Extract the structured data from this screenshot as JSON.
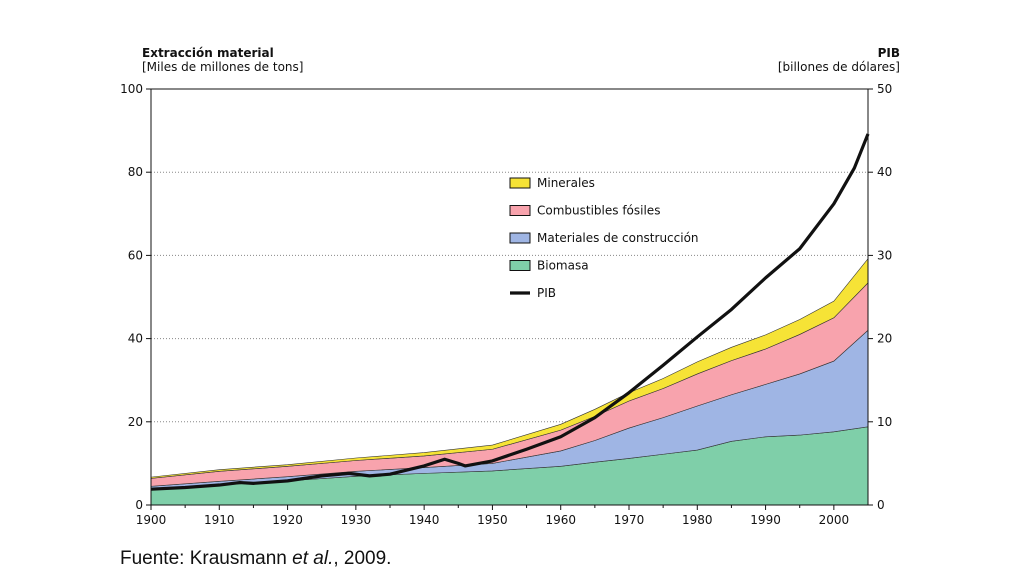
{
  "chart_data": {
    "type": "area",
    "left_axis": {
      "title": "Extracción material",
      "unit": "[Miles de millones de tons]",
      "ylim": [
        0,
        100
      ],
      "ticks": [
        "0",
        "20",
        "40",
        "60",
        "80",
        "100"
      ]
    },
    "right_axis": {
      "title": "PIB",
      "unit": "[billones de dólares]",
      "ylim": [
        0,
        50
      ],
      "ticks": [
        "0",
        "10",
        "20",
        "30",
        "40",
        "50"
      ]
    },
    "x_ticks": [
      "1900",
      "1910",
      "1920",
      "1930",
      "1940",
      "1950",
      "1960",
      "1970",
      "1980",
      "1990",
      "2000"
    ],
    "xlim": [
      1900,
      2005
    ],
    "grid": "horizontal-dotted",
    "legend_position": "center",
    "stacked_series": [
      {
        "name": "Biomasa",
        "color": "#7fcfa9",
        "points": [
          [
            1900,
            3.8
          ],
          [
            1910,
            4.8
          ],
          [
            1920,
            5.8
          ],
          [
            1930,
            6.9
          ],
          [
            1940,
            7.6
          ],
          [
            1950,
            8.2
          ],
          [
            1960,
            9.3
          ],
          [
            1965,
            10.3
          ],
          [
            1970,
            11.2
          ],
          [
            1975,
            12.2
          ],
          [
            1980,
            13.2
          ],
          [
            1985,
            15.3
          ],
          [
            1990,
            16.4
          ],
          [
            1995,
            16.8
          ],
          [
            2000,
            17.6
          ],
          [
            2005,
            18.8
          ]
        ]
      },
      {
        "name": "Materiales de construcción",
        "color": "#9fb5e4",
        "points": [
          [
            1900,
            0.7
          ],
          [
            1910,
            0.9
          ],
          [
            1920,
            1.0
          ],
          [
            1930,
            1.2
          ],
          [
            1940,
            1.4
          ],
          [
            1950,
            1.8
          ],
          [
            1960,
            3.7
          ],
          [
            1965,
            5.2
          ],
          [
            1970,
            7.3
          ],
          [
            1975,
            8.8
          ],
          [
            1980,
            10.6
          ],
          [
            1985,
            11.2
          ],
          [
            1990,
            12.6
          ],
          [
            1995,
            14.7
          ],
          [
            2000,
            17.0
          ],
          [
            2005,
            23.2
          ]
        ]
      },
      {
        "name": "Combustibles fósiles",
        "color": "#f8a3ad",
        "points": [
          [
            1900,
            1.9
          ],
          [
            1910,
            2.4
          ],
          [
            1920,
            2.5
          ],
          [
            1930,
            2.6
          ],
          [
            1940,
            2.8
          ],
          [
            1950,
            3.4
          ],
          [
            1960,
            5.0
          ],
          [
            1965,
            5.8
          ],
          [
            1970,
            6.5
          ],
          [
            1975,
            7.0
          ],
          [
            1980,
            7.7
          ],
          [
            1985,
            8.2
          ],
          [
            1990,
            8.5
          ],
          [
            1995,
            9.5
          ],
          [
            2000,
            10.4
          ],
          [
            2005,
            11.4
          ]
        ]
      },
      {
        "name": "Minerales",
        "color": "#f6e336",
        "points": [
          [
            1900,
            0.3
          ],
          [
            1910,
            0.4
          ],
          [
            1920,
            0.4
          ],
          [
            1930,
            0.6
          ],
          [
            1940,
            0.8
          ],
          [
            1950,
            1.0
          ],
          [
            1960,
            1.4
          ],
          [
            1965,
            1.7
          ],
          [
            1970,
            2.0
          ],
          [
            1975,
            2.4
          ],
          [
            1980,
            2.9
          ],
          [
            1985,
            3.2
          ],
          [
            1990,
            3.4
          ],
          [
            1995,
            3.6
          ],
          [
            2000,
            4.0
          ],
          [
            2005,
            5.8
          ]
        ]
      }
    ],
    "line_series": {
      "name": "PIB",
      "axis": "right",
      "color": "#111111",
      "points": [
        [
          1900,
          1.9
        ],
        [
          1905,
          2.1
        ],
        [
          1910,
          2.4
        ],
        [
          1913,
          2.7
        ],
        [
          1915,
          2.6
        ],
        [
          1920,
          2.9
        ],
        [
          1925,
          3.5
        ],
        [
          1929,
          3.8
        ],
        [
          1932,
          3.5
        ],
        [
          1935,
          3.7
        ],
        [
          1938,
          4.3
        ],
        [
          1940,
          4.7
        ],
        [
          1943,
          5.5
        ],
        [
          1945,
          5.0
        ],
        [
          1946,
          4.7
        ],
        [
          1950,
          5.3
        ],
        [
          1955,
          6.7
        ],
        [
          1960,
          8.2
        ],
        [
          1965,
          10.5
        ],
        [
          1970,
          13.5
        ],
        [
          1975,
          16.8
        ],
        [
          1980,
          20.2
        ],
        [
          1985,
          23.5
        ],
        [
          1990,
          27.3
        ],
        [
          1995,
          30.8
        ],
        [
          2000,
          36.2
        ],
        [
          2003,
          40.5
        ],
        [
          2005,
          44.6
        ]
      ]
    },
    "legend": [
      {
        "label": "Minerales",
        "color": "#f6e336",
        "kind": "box"
      },
      {
        "label": "Combustibles fósiles",
        "color": "#f8a3ad",
        "kind": "box"
      },
      {
        "label": "Materiales de construcción",
        "color": "#9fb5e4",
        "kind": "box"
      },
      {
        "label": "Biomasa",
        "color": "#7fcfa9",
        "kind": "box"
      },
      {
        "label": "PIB",
        "color": "#111111",
        "kind": "line"
      }
    ]
  },
  "source": {
    "prefix": "Fuente: Krausmann ",
    "italic": "et al.",
    "suffix": ", 2009."
  }
}
